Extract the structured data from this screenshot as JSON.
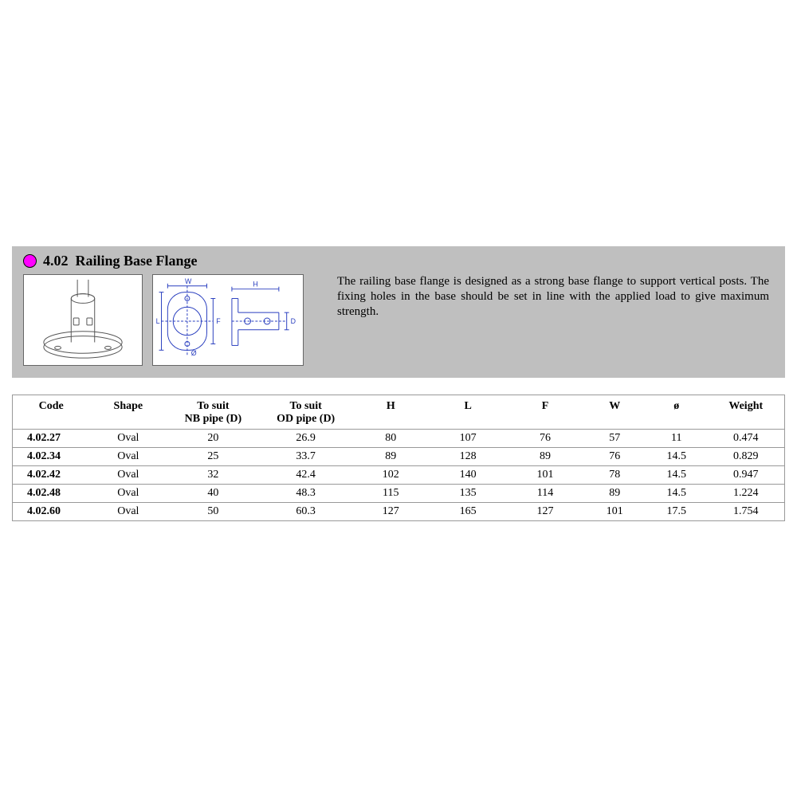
{
  "section": {
    "number": "4.02",
    "name": "Railing Base Flange",
    "bullet_color": "#ff00ff",
    "band_color": "#bfbfbf"
  },
  "description": "The railing base flange is designed as a strong base flange to support vertical posts. The fixing holes in the base should be set in line with the applied load to give maximum strength.",
  "diagram_labels": {
    "w": "W",
    "l": "L",
    "f": "F",
    "h": "H",
    "d": "D",
    "dia": "Ø"
  },
  "diagram": {
    "stroke": "#2a3fbf",
    "fill": "#ffffff",
    "text_size": 9
  },
  "table": {
    "columns": [
      {
        "key": "code",
        "label_lines": [
          "Code"
        ]
      },
      {
        "key": "shape",
        "label_lines": [
          "Shape"
        ]
      },
      {
        "key": "nb",
        "label_lines": [
          "To suit",
          "NB pipe (D)"
        ]
      },
      {
        "key": "od",
        "label_lines": [
          "To suit",
          "OD pipe (D)"
        ]
      },
      {
        "key": "h",
        "label_lines": [
          "H"
        ]
      },
      {
        "key": "l",
        "label_lines": [
          "L"
        ]
      },
      {
        "key": "f",
        "label_lines": [
          "F"
        ]
      },
      {
        "key": "w",
        "label_lines": [
          "W"
        ]
      },
      {
        "key": "dia",
        "label_lines": [
          "ø"
        ]
      },
      {
        "key": "wt",
        "label_lines": [
          "Weight"
        ]
      }
    ],
    "col_classes": [
      "col-code",
      "col-shape",
      "col-nb",
      "col-od",
      "col-h",
      "col-l",
      "col-f",
      "col-w",
      "col-dia",
      "col-wt"
    ],
    "rows": [
      [
        "4.02.27",
        "Oval",
        "20",
        "26.9",
        "80",
        "107",
        "76",
        "57",
        "11",
        "0.474"
      ],
      [
        "4.02.34",
        "Oval",
        "25",
        "33.7",
        "89",
        "128",
        "89",
        "76",
        "14.5",
        "0.829"
      ],
      [
        "4.02.42",
        "Oval",
        "32",
        "42.4",
        "102",
        "140",
        "101",
        "78",
        "14.5",
        "0.947"
      ],
      [
        "4.02.48",
        "Oval",
        "40",
        "48.3",
        "115",
        "135",
        "114",
        "89",
        "14.5",
        "1.224"
      ],
      [
        "4.02.60",
        "Oval",
        "50",
        "60.3",
        "127",
        "165",
        "127",
        "101",
        "17.5",
        "1.754"
      ]
    ]
  }
}
